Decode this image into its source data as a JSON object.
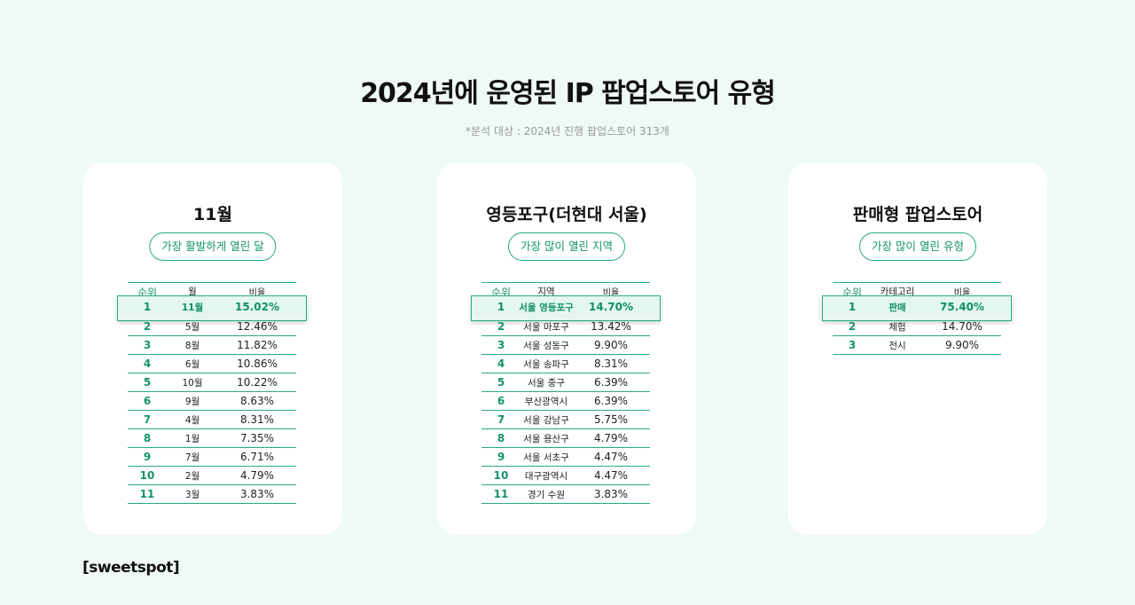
{
  "title": "2024년에 운영된 IP 팝업스토어 유형",
  "subtitle": "*분석 대상 : 2024년 진행 팝업스토어 313개",
  "logo": "[sweetspot]",
  "colors": {
    "accent": "#2aaa82",
    "background": "#eefaf3",
    "highlight": "#e4f7ee"
  },
  "cards": [
    {
      "title": "11월",
      "pill": "가장 활발하게 열린 달",
      "headers": [
        "순위",
        "월",
        "비율"
      ],
      "rows": [
        [
          "1",
          "11월",
          "15.02%"
        ],
        [
          "2",
          "5월",
          "12.46%"
        ],
        [
          "3",
          "8월",
          "11.82%"
        ],
        [
          "4",
          "6월",
          "10.86%"
        ],
        [
          "5",
          "10월",
          "10.22%"
        ],
        [
          "6",
          "9월",
          "8.63%"
        ],
        [
          "7",
          "4월",
          "8.31%"
        ],
        [
          "8",
          "1월",
          "7.35%"
        ],
        [
          "9",
          "7월",
          "6.71%"
        ],
        [
          "10",
          "2월",
          "4.79%"
        ],
        [
          "11",
          "3월",
          "3.83%"
        ]
      ]
    },
    {
      "title": "영등포구(더현대 서울)",
      "pill": "가장 많이 열린 지역",
      "headers": [
        "순위",
        "지역",
        "비율"
      ],
      "rows": [
        [
          "1",
          "서울 영등포구",
          "14.70%"
        ],
        [
          "2",
          "서울 마포구",
          "13.42%"
        ],
        [
          "3",
          "서울 성동구",
          "9.90%"
        ],
        [
          "4",
          "서울 송파구",
          "8.31%"
        ],
        [
          "5",
          "서울 중구",
          "6.39%"
        ],
        [
          "6",
          "부산광역시",
          "6.39%"
        ],
        [
          "7",
          "서울 강남구",
          "5.75%"
        ],
        [
          "8",
          "서울 용산구",
          "4.79%"
        ],
        [
          "9",
          "서울 서초구",
          "4.47%"
        ],
        [
          "10",
          "대구광역시",
          "4.47%"
        ],
        [
          "11",
          "경기 수원",
          "3.83%"
        ]
      ]
    },
    {
      "title": "판매형 팝업스토어",
      "pill": "가장 많이 열린 유형",
      "headers": [
        "순위",
        "카테고리",
        "비율"
      ],
      "rows": [
        [
          "1",
          "판매",
          "75.40%"
        ],
        [
          "2",
          "체험",
          "14.70%"
        ],
        [
          "3",
          "전시",
          "9.90%"
        ]
      ]
    }
  ]
}
